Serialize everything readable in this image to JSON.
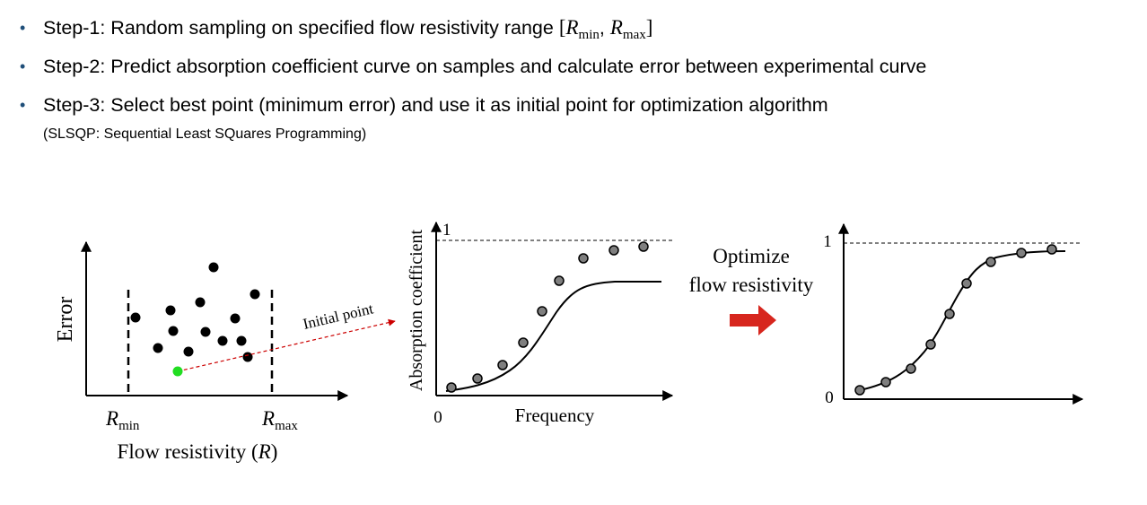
{
  "steps": [
    {
      "prefix": "Step-1: Random sampling on specified flow resistivity range ",
      "open": "[",
      "r": "R",
      "min_sub": "min",
      "comma": ", ",
      "max_sub": "max",
      "close": "]"
    },
    {
      "text": "Step-2: Predict absorption coefficient curve on samples and calculate error between experimental curve"
    },
    {
      "text": "Step-3: Select best point (minimum error) and use it as initial point for optimization algorithm"
    }
  ],
  "note": "(SLSQP: Sequential Least SQuares Programming)",
  "colors": {
    "bullet": "#1f4e79",
    "best_point": "#22dd22",
    "arrow_red": "#d7261e",
    "initial_arrow": "#cc0000",
    "marker_gray": "#7f7f7f"
  },
  "diagram1": {
    "ylabel": "Error",
    "rmin": {
      "r": "R",
      "sub": "min"
    },
    "rmax": {
      "r": "R",
      "sub": "max"
    },
    "xlabel_prefix": "Flow resistivity (",
    "xlabel_var": "R",
    "xlabel_suffix": ")",
    "annotation": "Initial point"
  },
  "diagram2": {
    "ylabel": "Absorption coefficient",
    "xlabel": "Frequency",
    "y_top": "1",
    "origin": "0"
  },
  "middle_label": {
    "line1": "Optimize",
    "line2": "flow resistivity"
  },
  "diagram3": {
    "y_top": "1",
    "y_zero": "0"
  }
}
